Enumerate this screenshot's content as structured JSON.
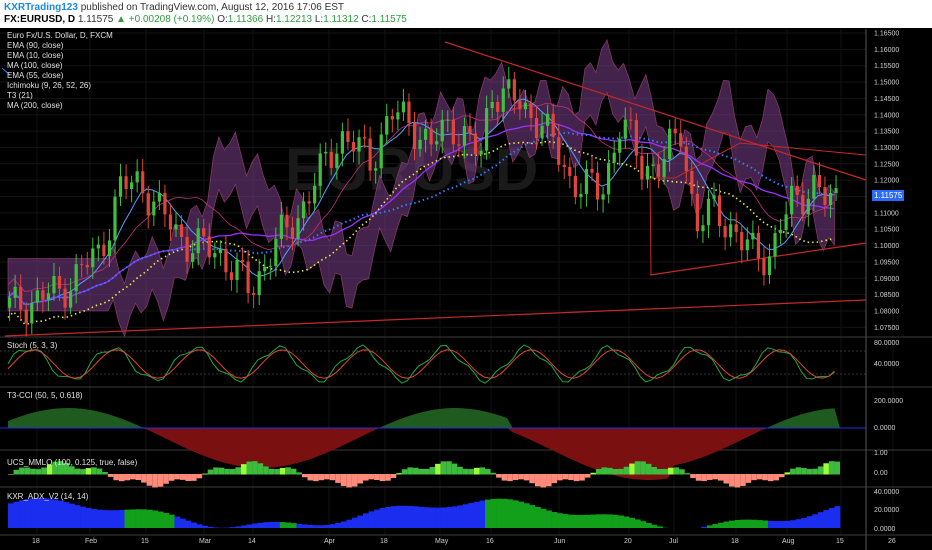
{
  "header": {
    "author": "KXRTrading123",
    "published_text": "published on TradingView.com, August 12, 2016 17:06 EST",
    "symbol": "FX:EURUSD, D",
    "last": "1.11575",
    "change": "+0.00208 (+0.19%)",
    "o_label": "O:",
    "o_value": "1.11366",
    "h_label": "H:",
    "h_value": "1.12213",
    "l_label": "L:",
    "l_value": "1.11312",
    "c_label": "C:",
    "c_value": "1.11575"
  },
  "legend": {
    "title": "Euro Fx/U.S. Dollar, D, FXCM",
    "items": [
      "EMA (90, close)",
      "EMA (10, close)",
      "MA (100, close)",
      "EMA (55, close)",
      "Ichimoku (9, 26, 52, 26)",
      "T3 (21)",
      "MA (200, close)"
    ]
  },
  "price_axis": [
    "1.16500",
    "1.16000",
    "1.15500",
    "1.15000",
    "1.14500",
    "1.14000",
    "1.13500",
    "1.13000",
    "1.12500",
    "1.12000",
    "1.11500",
    "1.11000",
    "1.10500",
    "1.10000",
    "1.09500",
    "1.09000",
    "1.08500",
    "1.08000",
    "1.07500"
  ],
  "current_price_tag": "1.11575",
  "panes": {
    "stoch": {
      "title": "Stoch (5, 3, 3)",
      "axis": [
        "80.0000",
        "40.0000"
      ]
    },
    "cci": {
      "title": "T3-CCI (50, 5, 0.618)",
      "axis": [
        "200.0000",
        "0.0000"
      ]
    },
    "mmlo": {
      "title": "UCS_MMLO (100, 0.125, true, false)",
      "axis": [
        "1.00",
        "0.00"
      ]
    },
    "adx": {
      "title": "KXR_ADX_V2 (14, 14)",
      "axis": [
        "40.0000",
        "20.0000",
        "0.0000"
      ]
    }
  },
  "x_axis": [
    "18",
    "Feb",
    "15",
    "Mar",
    "14",
    "Apr",
    "18",
    "May",
    "16",
    "Jun",
    "20",
    "Jul",
    "18",
    "Aug",
    "15",
    "26"
  ],
  "watermark": "EURUSD",
  "colors": {
    "up_candle": "#3fbf3f",
    "down_candle": "#e0453b",
    "cloud": "#7a3f8a",
    "trendline": "#c62828",
    "adx_green": "#12a01b",
    "adx_blue": "#1b2ef0",
    "price_tag": "#2a6cf5"
  }
}
